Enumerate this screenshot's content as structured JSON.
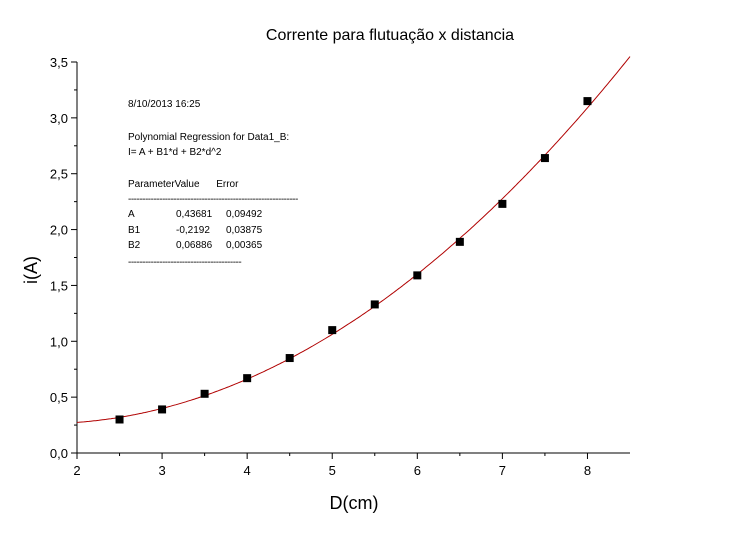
{
  "chart_data": {
    "type": "scatter",
    "title": "Corrente para flutuação x distancia",
    "xlabel": "D(cm)",
    "ylabel": "i(A)",
    "xlim": [
      2,
      8.5
    ],
    "ylim": [
      0.0,
      3.5
    ],
    "x_ticks": [
      2,
      3,
      4,
      5,
      6,
      7,
      8
    ],
    "y_ticks": [
      "0,0",
      "0,5",
      "1,0",
      "1,5",
      "2,0",
      "2,5",
      "3,0",
      "3,5"
    ],
    "series": [
      {
        "type": "scatter",
        "marker": "square",
        "color": "#000000",
        "x": [
          2.5,
          3.0,
          3.5,
          4.0,
          4.5,
          5.0,
          5.5,
          6.0,
          6.5,
          7.0,
          7.5,
          8.0
        ],
        "y": [
          0.3,
          0.39,
          0.53,
          0.67,
          0.85,
          1.1,
          1.33,
          1.59,
          1.89,
          2.23,
          2.64,
          3.15
        ]
      },
      {
        "type": "line",
        "color": "#b00000",
        "fit": "polynomial",
        "coefficients": [
          0.43681,
          -0.2192,
          0.06886
        ]
      }
    ],
    "annotation": {
      "date": "8/10/2013 16:25",
      "line1": "Polynomial Regression for Data1_B:",
      "line2": "I= A + B1*d + B2*d^2",
      "header": "ParameterValue      Error",
      "rule1": "------------------------------------------------------------",
      "rows": [
        [
          "A",
          "0,43681",
          "0,09492"
        ],
        [
          "B1",
          "-0,2192",
          "0,03875"
        ],
        [
          "B2",
          "0,06886",
          "0,00365"
        ]
      ],
      "rule2": "----------------------------------------"
    },
    "grid": false
  }
}
